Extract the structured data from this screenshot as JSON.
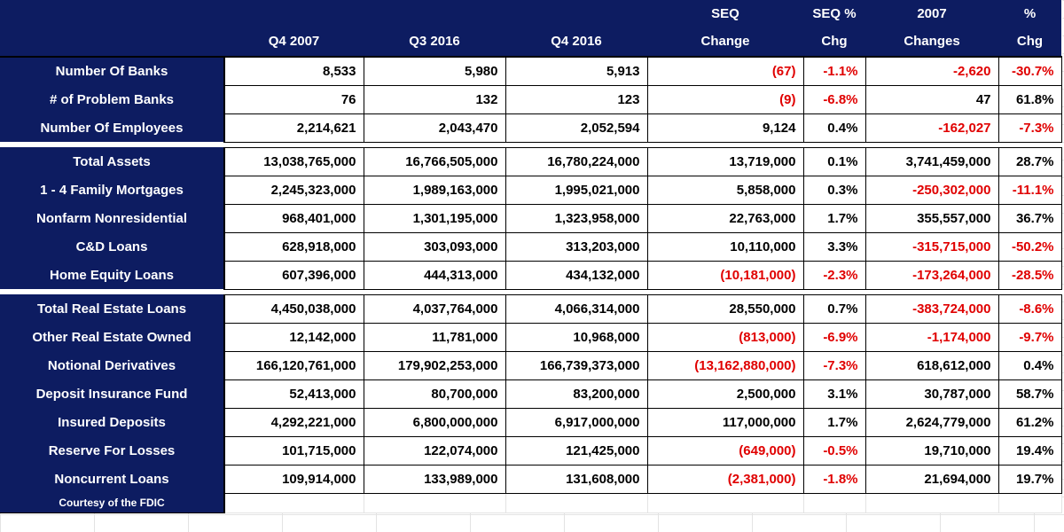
{
  "colors": {
    "header_navy": "#0d1c61",
    "negative_red": "#e00000",
    "positive_black": "#000000",
    "gridline_gray": "#e3e3e3"
  },
  "chart_data": {
    "type": "table",
    "header_line1": [
      "",
      "",
      "",
      "",
      "SEQ",
      "SEQ %",
      "2007",
      "%"
    ],
    "header_line2": [
      "",
      "Q4 2007",
      "Q3 2016",
      "Q4 2016",
      "Change",
      "Chg",
      "Changes",
      "Chg"
    ],
    "rows": [
      {
        "label": "Number Of Banks",
        "values": [
          "8,533",
          "5,980",
          "5,913",
          "(67)",
          "-1.1%",
          "-2,620",
          "-30.7%"
        ]
      },
      {
        "label": "# of Problem Banks",
        "values": [
          "76",
          "132",
          "123",
          "(9)",
          "-6.8%",
          "47",
          "61.8%"
        ]
      },
      {
        "label": "Number Of Employees",
        "values": [
          "2,214,621",
          "2,043,470",
          "2,052,594",
          "9,124",
          "0.4%",
          "-162,027",
          "-7.3%"
        ]
      },
      {
        "label": "Total Assets",
        "gap_before": true,
        "values": [
          "13,038,765,000",
          "16,766,505,000",
          "16,780,224,000",
          "13,719,000",
          "0.1%",
          "3,741,459,000",
          "28.7%"
        ]
      },
      {
        "label": "1 - 4 Family Mortgages",
        "values": [
          "2,245,323,000",
          "1,989,163,000",
          "1,995,021,000",
          "5,858,000",
          "0.3%",
          "-250,302,000",
          "-11.1%"
        ]
      },
      {
        "label": "Nonfarm Nonresidential",
        "values": [
          "968,401,000",
          "1,301,195,000",
          "1,323,958,000",
          "22,763,000",
          "1.7%",
          "355,557,000",
          "36.7%"
        ]
      },
      {
        "label": "C&D Loans",
        "values": [
          "628,918,000",
          "303,093,000",
          "313,203,000",
          "10,110,000",
          "3.3%",
          "-315,715,000",
          "-50.2%"
        ]
      },
      {
        "label": "Home Equity Loans",
        "values": [
          "607,396,000",
          "444,313,000",
          "434,132,000",
          "(10,181,000)",
          "-2.3%",
          "-173,264,000",
          "-28.5%"
        ]
      },
      {
        "label": "Total Real Estate Loans",
        "gap_before": true,
        "values": [
          "4,450,038,000",
          "4,037,764,000",
          "4,066,314,000",
          "28,550,000",
          "0.7%",
          "-383,724,000",
          "-8.6%"
        ]
      },
      {
        "label": "Other Real Estate Owned",
        "values": [
          "12,142,000",
          "11,781,000",
          "10,968,000",
          "(813,000)",
          "-6.9%",
          "-1,174,000",
          "-9.7%"
        ]
      },
      {
        "label": "Notional Derivatives",
        "values": [
          "166,120,761,000",
          "179,902,253,000",
          "166,739,373,000",
          "(13,162,880,000)",
          "-7.3%",
          "618,612,000",
          "0.4%"
        ]
      },
      {
        "label": "Deposit Insurance Fund",
        "values": [
          "52,413,000",
          "80,700,000",
          "83,200,000",
          "2,500,000",
          "3.1%",
          "30,787,000",
          "58.7%"
        ]
      },
      {
        "label": "Insured Deposits",
        "values": [
          "4,292,221,000",
          "6,800,000,000",
          "6,917,000,000",
          "117,000,000",
          "1.7%",
          "2,624,779,000",
          "61.2%"
        ]
      },
      {
        "label": "Reserve For Losses",
        "values": [
          "101,715,000",
          "122,074,000",
          "121,425,000",
          "(649,000)",
          "-0.5%",
          "19,710,000",
          "19.4%"
        ]
      },
      {
        "label": "Noncurrent Loans",
        "values": [
          "109,914,000",
          "133,989,000",
          "131,608,000",
          "(2,381,000)",
          "-1.8%",
          "21,694,000",
          "19.7%"
        ]
      }
    ],
    "footer": "Courtesy of the FDIC"
  }
}
